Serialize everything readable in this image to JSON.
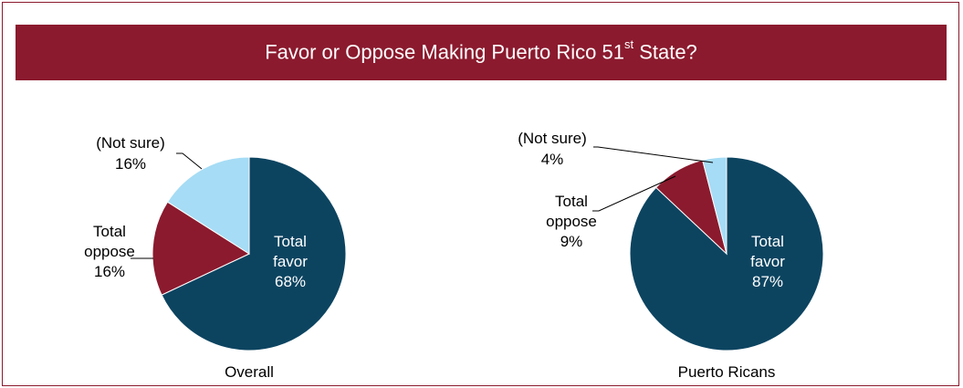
{
  "title": {
    "pre": "Favor or Oppose Making Puerto Rico 51",
    "sup": "st",
    "post": " State?"
  },
  "colors": {
    "banner": "#8b1a2e",
    "favor": "#0c4460",
    "oppose": "#8b1a2e",
    "not_sure": "#a6dcf5"
  },
  "chart_data": [
    {
      "type": "pie",
      "title": "Overall",
      "slices": [
        {
          "label": "Total favor",
          "value": 68,
          "display": "68%",
          "color": "#0c4460"
        },
        {
          "label": "Total oppose",
          "value": 16,
          "display": "16%",
          "color": "#8b1a2e"
        },
        {
          "label": "(Not sure)",
          "value": 16,
          "display": "16%",
          "color": "#a6dcf5"
        }
      ]
    },
    {
      "type": "pie",
      "title": "Puerto Ricans",
      "slices": [
        {
          "label": "Total favor",
          "value": 87,
          "display": "87%",
          "color": "#0c4460"
        },
        {
          "label": "Total oppose",
          "value": 9,
          "display": "9%",
          "color": "#8b1a2e"
        },
        {
          "label": "(Not sure)",
          "value": 4,
          "display": "4%",
          "color": "#a6dcf5"
        }
      ]
    }
  ]
}
